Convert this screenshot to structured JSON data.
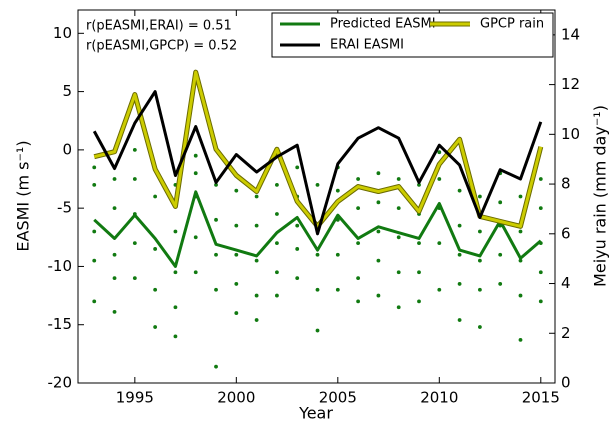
{
  "chart_data": {
    "type": "line",
    "annotations": [
      "r(pEASMI,ERAI) = 0.51",
      "r(pEASMI,GPCP) = 0.52"
    ],
    "xlabel": "Year",
    "ylabel": "EASMI (m s⁻¹)",
    "y2label": "Meiyu rain (mm day⁻¹)",
    "x": [
      1993,
      1994,
      1995,
      1996,
      1997,
      1998,
      1999,
      2000,
      2001,
      2002,
      2003,
      2004,
      2005,
      2006,
      2007,
      2008,
      2009,
      2010,
      2011,
      2012,
      2013,
      2014,
      2015
    ],
    "xlim": [
      1992.2,
      2015.7
    ],
    "xticks": [
      1995,
      2000,
      2005,
      2010,
      2015
    ],
    "ylim": [
      -20,
      12
    ],
    "yticks": [
      -20,
      -15,
      -10,
      -5,
      0,
      5,
      10
    ],
    "y2lim": [
      0,
      15
    ],
    "y2ticks": [
      0,
      2,
      4,
      6,
      8,
      10,
      12,
      14
    ],
    "series": [
      {
        "name": "Predicted EASMI",
        "color": "#117a11",
        "values": [
          -6,
          -7.6,
          -5.6,
          -7.6,
          -10,
          -3.6,
          -8.1,
          -8.6,
          -9.1,
          -7.1,
          -5.8,
          -8.6,
          -5.6,
          -7.6,
          -6.6,
          -7.1,
          -7.6,
          -4.6,
          -8.6,
          -9.1,
          -6.1,
          -9.3,
          -7.8
        ]
      },
      {
        "name": "ERAI EASMI",
        "color": "#000000",
        "values": [
          1.6,
          -1.6,
          2.3,
          5,
          -2.2,
          2,
          -2.8,
          -0.4,
          -1.9,
          -0.6,
          0.4,
          -7.2,
          -1.2,
          1,
          1.9,
          1,
          -2.8,
          0.4,
          -1.3,
          -5.8,
          -1.7,
          -2.5,
          2.4
        ]
      },
      {
        "name": "GPCP rain",
        "color": "#cccc00",
        "axis": "y2",
        "values": [
          9.1,
          9.3,
          11.6,
          8.6,
          7.1,
          12.5,
          9.4,
          8.35,
          7.7,
          9.4,
          7.3,
          6.3,
          7.3,
          7.9,
          7.7,
          7.9,
          6.9,
          8.8,
          9.8,
          6.7,
          6.5,
          6.3,
          9.5
        ]
      }
    ],
    "members_color": "#117a11",
    "members": [
      [
        -1.5,
        -3,
        -7,
        -9.5,
        -13
      ],
      [
        -2.5,
        -5,
        -9,
        -11,
        -13.9
      ],
      [
        0,
        -2.5,
        -5.5,
        -8,
        -11
      ],
      [
        -1.5,
        -4,
        -8.5,
        -12,
        -15.2
      ],
      [
        -3,
        -7,
        -10.5,
        -13.5,
        -16
      ],
      [
        -0.5,
        -2,
        -4,
        -7.5,
        -10.5
      ],
      [
        -3,
        -6,
        -9,
        -12,
        -18.6
      ],
      [
        -3.5,
        -6.5,
        -9,
        -11.5,
        -14
      ],
      [
        -4,
        -6.5,
        -9.5,
        -12.5,
        -14.6
      ],
      [
        -3,
        -5.5,
        -8,
        -10.5,
        -12.5
      ],
      [
        -1.5,
        -4,
        -6.5,
        -8.5,
        -11
      ],
      [
        -3,
        -6.5,
        -9,
        -12,
        -15.5
      ],
      [
        -1.5,
        -3.5,
        -6,
        -9,
        -12
      ],
      [
        -2.5,
        -5,
        -8,
        -11,
        -13
      ],
      [
        -2,
        -4.5,
        -7,
        -9.5,
        -12.5
      ],
      [
        -2.5,
        -5,
        -7.5,
        -10.5,
        -13.5
      ],
      [
        -3,
        -5.5,
        -8,
        -10.5,
        -13
      ],
      [
        -0.2,
        -2.5,
        -5,
        -8,
        -12
      ],
      [
        -3.5,
        -6.5,
        -9,
        -11.5,
        -14.6
      ],
      [
        -4,
        -7,
        -9.5,
        -12,
        -15.2
      ],
      [
        -2,
        -4.5,
        -6.5,
        -9,
        -11.5
      ],
      [
        -4,
        -7,
        -9.5,
        -12.5,
        -16.3
      ],
      [
        -2.5,
        -5,
        -8,
        -10.5,
        -13
      ]
    ]
  }
}
